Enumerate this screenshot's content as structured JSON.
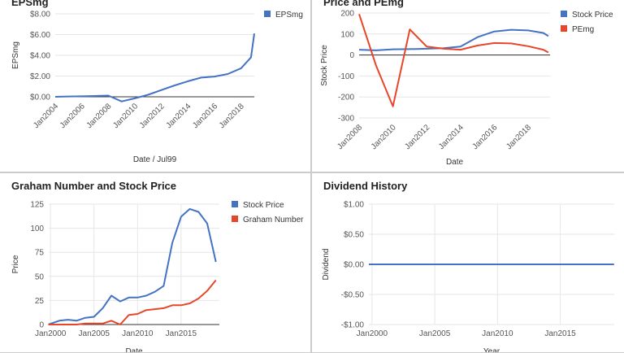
{
  "chart_data": [
    {
      "type": "line",
      "title": "EPSmg",
      "xlabel": "Date / Jul99",
      "ylabel": "EPSmg",
      "ylim": [
        0,
        8
      ],
      "yticks": [
        "$0.00",
        "$2.00",
        "$4.00",
        "$6.00",
        "$8.00"
      ],
      "xticks": [
        "Jan2004",
        "Jan2006",
        "Jan2008",
        "Jan2010",
        "Jan2012",
        "Jan2014",
        "Jan2016",
        "Jan2018"
      ],
      "series": [
        {
          "name": "EPSmg",
          "color": "#4472c4",
          "x": [
            2004.0,
            2005.0,
            2006.0,
            2007.0,
            2008.0,
            2009.0,
            2010.0,
            2011.0,
            2012.0,
            2013.0,
            2014.0,
            2015.0,
            2016.0,
            2017.0,
            2018.0,
            2018.75,
            2019.0
          ],
          "y": [
            0.0,
            0.03,
            0.05,
            0.08,
            0.12,
            -0.45,
            -0.15,
            0.2,
            0.65,
            1.1,
            1.5,
            1.85,
            1.95,
            2.2,
            2.75,
            3.8,
            6.1
          ]
        }
      ]
    },
    {
      "type": "line",
      "title": "Price and PEmg",
      "xlabel": "Date",
      "ylabel": "Stock Price",
      "ylim": [
        -300,
        200
      ],
      "yticks": [
        "-300",
        "-200",
        "-100",
        "0",
        "100",
        "200"
      ],
      "xticks": [
        "Jan2008",
        "Jan2010",
        "Jan2012",
        "Jan2014",
        "Jan2016",
        "Jan2018"
      ],
      "series": [
        {
          "name": "Stock Price",
          "color": "#4472c4",
          "x": [
            2008.0,
            2009.0,
            2010.0,
            2011.0,
            2012.0,
            2013.0,
            2014.0,
            2015.0,
            2016.0,
            2017.0,
            2018.0,
            2018.9,
            2019.2
          ],
          "y": [
            25,
            22,
            27,
            28,
            30,
            32,
            40,
            85,
            112,
            120,
            117,
            105,
            90
          ]
        },
        {
          "name": "PEmg",
          "color": "#e8462b",
          "x": [
            2008.0,
            2009.0,
            2010.0,
            2011.0,
            2012.0,
            2013.0,
            2014.0,
            2015.0,
            2016.0,
            2017.0,
            2018.0,
            2018.9,
            2019.2
          ],
          "y": [
            195,
            -50,
            -245,
            122,
            40,
            30,
            25,
            45,
            57,
            55,
            42,
            25,
            12
          ]
        }
      ]
    },
    {
      "type": "line",
      "title": "Graham Number and Stock Price",
      "xlabel": "Date",
      "ylabel": "Price",
      "ylim": [
        0,
        125
      ],
      "yticks": [
        "0",
        "25",
        "50",
        "75",
        "100",
        "125"
      ],
      "xticks": [
        "Jan2000",
        "Jan2005",
        "Jan2010",
        "Jan2015"
      ],
      "series": [
        {
          "name": "Stock Price",
          "color": "#4472c4",
          "x": [
            1999.75,
            2001.0,
            2002.0,
            2003.0,
            2004.0,
            2005.0,
            2006.0,
            2007.0,
            2008.0,
            2009.0,
            2010.0,
            2011.0,
            2012.0,
            2013.0,
            2014.0,
            2015.0,
            2016.0,
            2017.0,
            2018.0,
            2019.0
          ],
          "y": [
            0,
            4,
            5,
            4,
            7,
            8,
            17,
            30,
            24,
            28,
            28,
            30,
            34,
            40,
            85,
            112,
            120,
            117,
            105,
            65
          ]
        },
        {
          "name": "Graham Number",
          "color": "#e8462b",
          "x": [
            1999.75,
            2001.0,
            2002.0,
            2003.0,
            2004.0,
            2005.0,
            2006.0,
            2007.0,
            2008.0,
            2009.0,
            2010.0,
            2011.0,
            2012.0,
            2013.0,
            2014.0,
            2015.0,
            2016.0,
            2017.0,
            2018.0,
            2019.0
          ],
          "y": [
            0,
            0,
            0,
            0,
            1,
            1,
            1,
            4,
            0,
            10,
            11,
            15,
            16,
            17,
            20,
            20,
            22,
            27,
            35,
            46
          ]
        }
      ]
    },
    {
      "type": "line",
      "title": "Dividend History",
      "xlabel": "Year",
      "ylabel": "Dividend",
      "ylim": [
        -1,
        1
      ],
      "yticks": [
        "-$1.00",
        "-$0.50",
        "$0.00",
        "$0.50",
        "$1.00"
      ],
      "xticks": [
        "Jan2000",
        "Jan2005",
        "Jan2010",
        "Jan2015"
      ],
      "series": [
        {
          "name": "Dividend",
          "color": "#4472c4",
          "x": [
            1999.75,
            2019.25
          ],
          "y": [
            0,
            0
          ]
        }
      ]
    }
  ]
}
